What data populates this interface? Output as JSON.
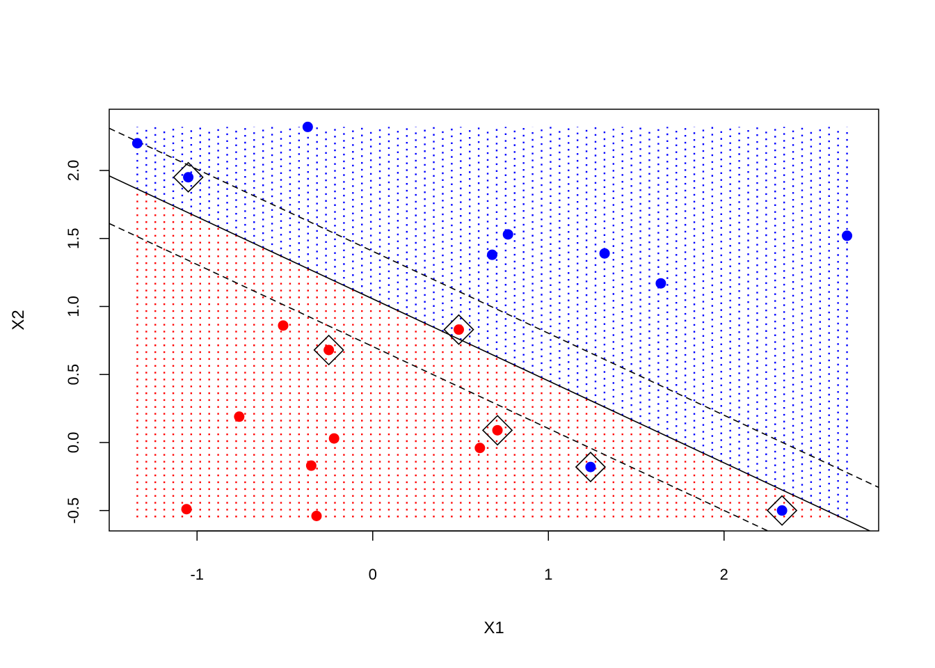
{
  "chart_data": {
    "type": "scatter",
    "title": "",
    "xlabel": "X1",
    "ylabel": "X2",
    "xlim": [
      -1.5,
      2.88
    ],
    "ylim": [
      -0.65,
      2.45
    ],
    "xticks": [
      -1,
      0,
      1,
      2
    ],
    "xtick_labels": [
      "-1",
      "0",
      "1",
      "2"
    ],
    "yticks": [
      -0.5,
      0.0,
      0.5,
      1.0,
      1.5,
      2.0
    ],
    "ytick_labels": [
      "-0.5",
      "0.0",
      "0.5",
      "1.0",
      "1.5",
      "2.0"
    ],
    "grid": false,
    "legend": "none",
    "colors": {
      "class_pos": "#0000ff",
      "class_neg": "#ff0000",
      "boundary": "#000000"
    },
    "decision_grid": {
      "x_range": [
        -1.34,
        2.7
      ],
      "y_range": [
        -0.55,
        2.32
      ],
      "nx": 80,
      "ny": 58
    },
    "decision_boundary": {
      "x1": [
        -1.5,
        2.88
      ],
      "x2": [
        1.96,
        -0.68
      ]
    },
    "margin_upper": {
      "x1": [
        -1.5,
        2.88
      ],
      "x2": [
        2.31,
        -0.33
      ]
    },
    "margin_lower": {
      "x1": [
        -1.5,
        2.88
      ],
      "x2": [
        1.61,
        -1.03
      ]
    },
    "series": [
      {
        "class": "pos",
        "color": "#0000ff",
        "points": [
          [
            -1.34,
            2.2
          ],
          [
            -1.05,
            1.95
          ],
          [
            -0.37,
            2.32
          ],
          [
            0.68,
            1.38
          ],
          [
            0.77,
            1.53
          ],
          [
            1.32,
            1.39
          ],
          [
            1.64,
            1.17
          ],
          [
            2.7,
            1.52
          ],
          [
            1.24,
            -0.18
          ],
          [
            2.33,
            -0.5
          ]
        ]
      },
      {
        "class": "neg",
        "color": "#ff0000",
        "points": [
          [
            -0.51,
            0.86
          ],
          [
            -0.25,
            0.68
          ],
          [
            0.49,
            0.83
          ],
          [
            -0.76,
            0.19
          ],
          [
            -0.22,
            0.03
          ],
          [
            0.71,
            0.09
          ],
          [
            0.61,
            -0.04
          ],
          [
            -0.35,
            -0.17
          ],
          [
            -1.06,
            -0.49
          ],
          [
            -0.32,
            -0.54
          ]
        ]
      }
    ],
    "support_vectors": [
      [
        -1.05,
        1.95
      ],
      [
        0.49,
        0.83
      ],
      [
        -0.25,
        0.68
      ],
      [
        0.71,
        0.09
      ],
      [
        1.24,
        -0.18
      ],
      [
        2.33,
        -0.5
      ]
    ]
  }
}
